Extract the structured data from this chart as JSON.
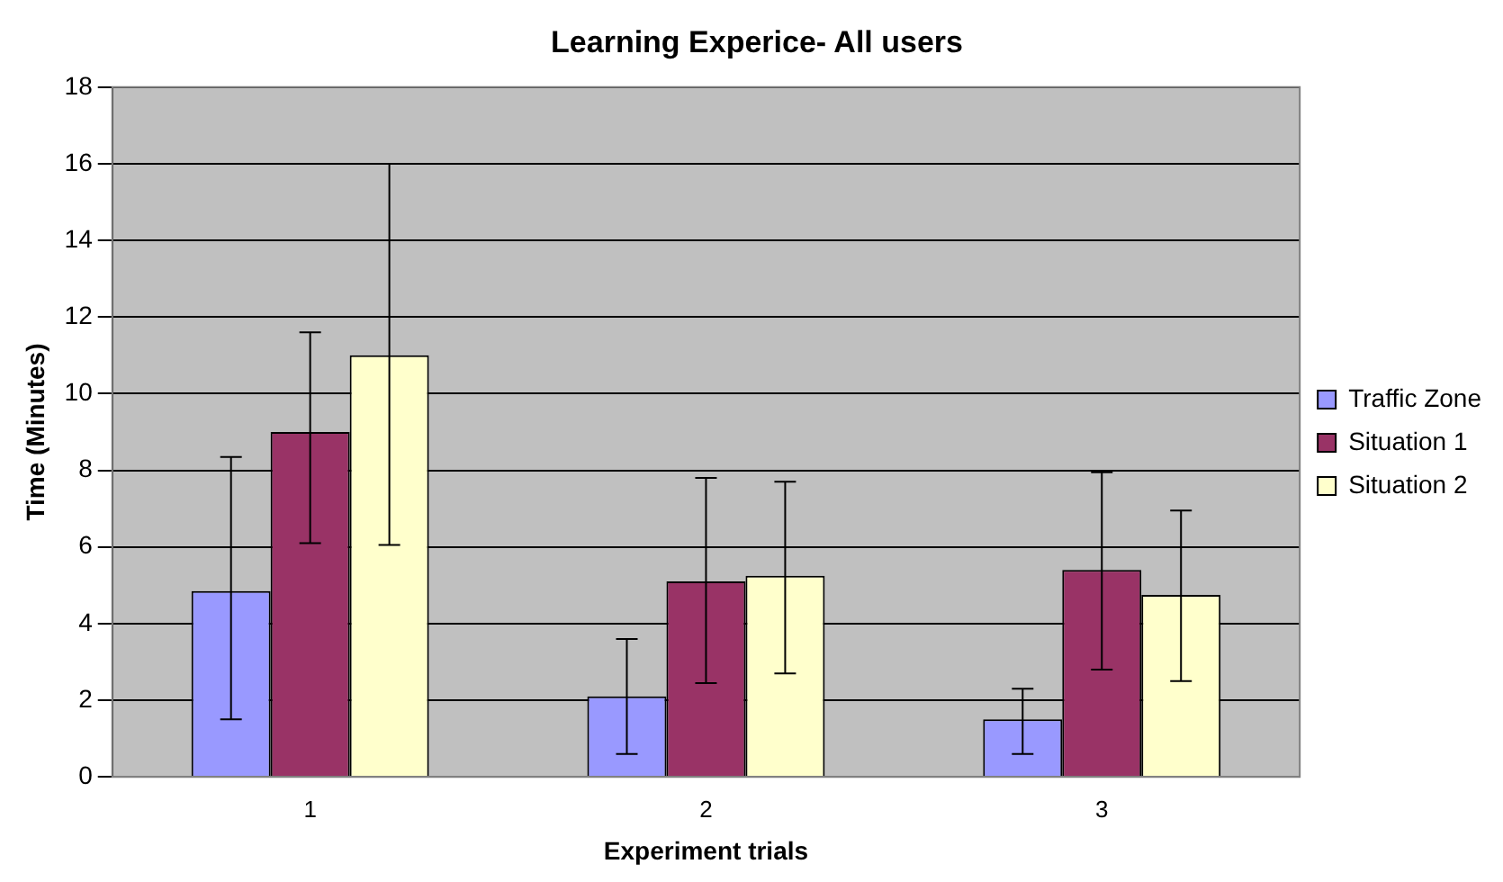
{
  "chart_data": {
    "type": "bar",
    "title": "Learning Experice- All users",
    "xlabel": "Experiment trials",
    "ylabel": "Time (Minutes)",
    "categories": [
      "1",
      "2",
      "3"
    ],
    "series": [
      {
        "name": "Traffic Zone",
        "color": "#9999ff",
        "values": [
          4.85,
          2.1,
          1.5
        ],
        "errors": [
          [
            1.5,
            8.35
          ],
          [
            0.6,
            3.6
          ],
          [
            0.6,
            2.3
          ]
        ]
      },
      {
        "name": "Situation 1",
        "color": "#993366",
        "values": [
          9.0,
          5.1,
          5.4
        ],
        "errors": [
          [
            6.1,
            11.6
          ],
          [
            2.45,
            7.8
          ],
          [
            2.8,
            7.95
          ]
        ]
      },
      {
        "name": "Situation 2",
        "color": "#ffffcc",
        "values": [
          11.0,
          5.25,
          4.75
        ],
        "errors": [
          [
            6.05,
            16
          ],
          [
            2.7,
            7.7
          ],
          [
            2.5,
            6.95
          ]
        ]
      }
    ],
    "ylim": [
      0,
      18
    ],
    "yticks": [
      0,
      2,
      4,
      6,
      8,
      10,
      12,
      14,
      16,
      18
    ],
    "grid": "y",
    "legend": "right"
  }
}
